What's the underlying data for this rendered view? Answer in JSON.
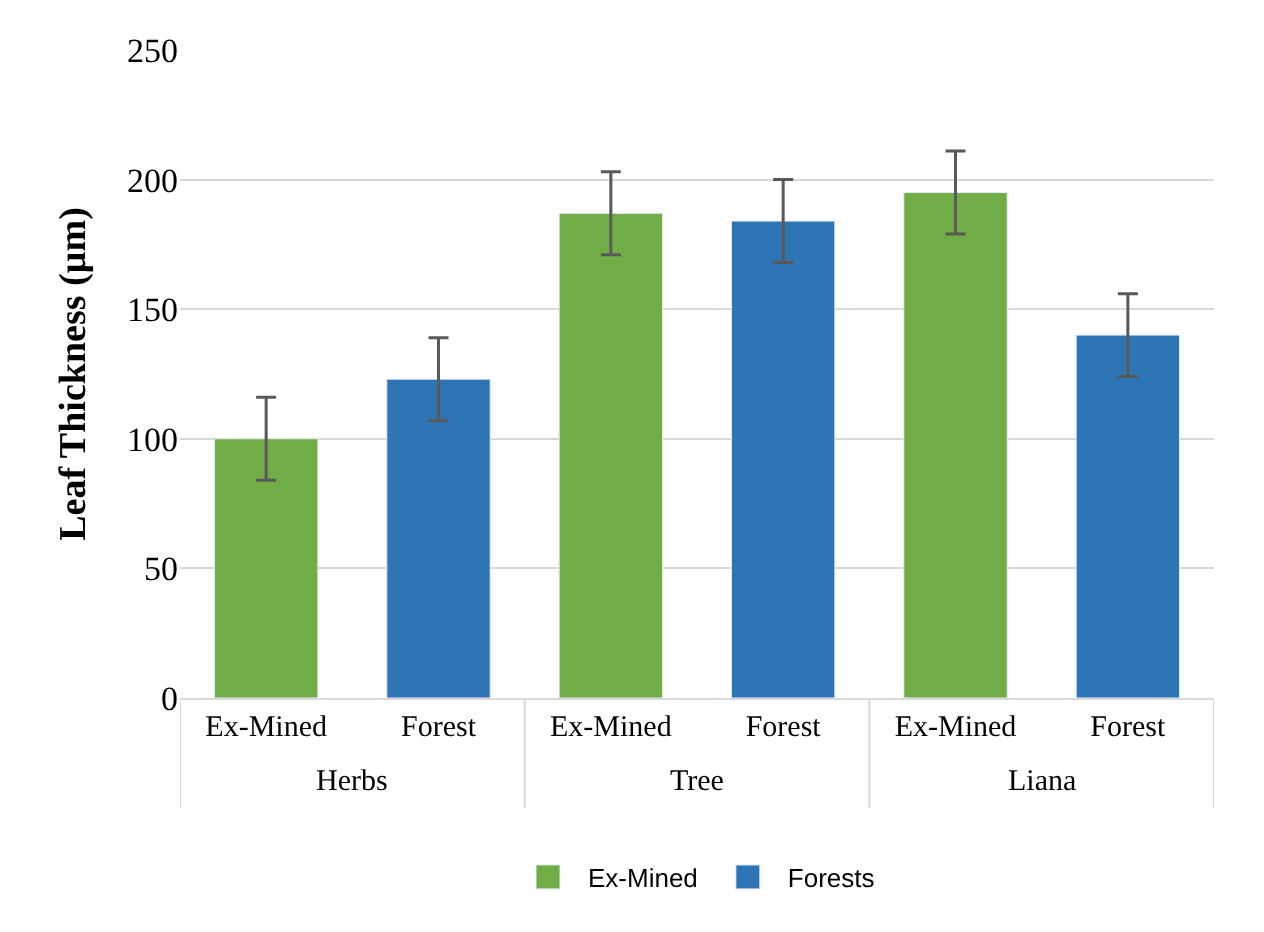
{
  "chart_data": {
    "type": "bar",
    "ylabel": "Leaf Thickness (µm)",
    "categories": [
      "Ex-Mined",
      "Forest",
      "Ex-Mined",
      "Forest",
      "Ex-Mined",
      "Forest"
    ],
    "series": [
      {
        "name": "Ex-Mined",
        "color": "#70ad47",
        "values": [
          100,
          null,
          187,
          null,
          195,
          null
        ],
        "errors": [
          16,
          null,
          16,
          null,
          16,
          null
        ]
      },
      {
        "name": "Forests",
        "color": "#2e75b6",
        "values": [
          null,
          123,
          null,
          184,
          null,
          140
        ],
        "errors": [
          null,
          16,
          null,
          16,
          null,
          16
        ]
      }
    ],
    "annotations": [
      "Herbs",
      "Tree",
      "Liana"
    ],
    "ylim": [
      0,
      250
    ],
    "yticks": [
      0,
      50,
      100,
      150,
      200,
      250
    ],
    "grid": "y",
    "legend": "bottom"
  }
}
